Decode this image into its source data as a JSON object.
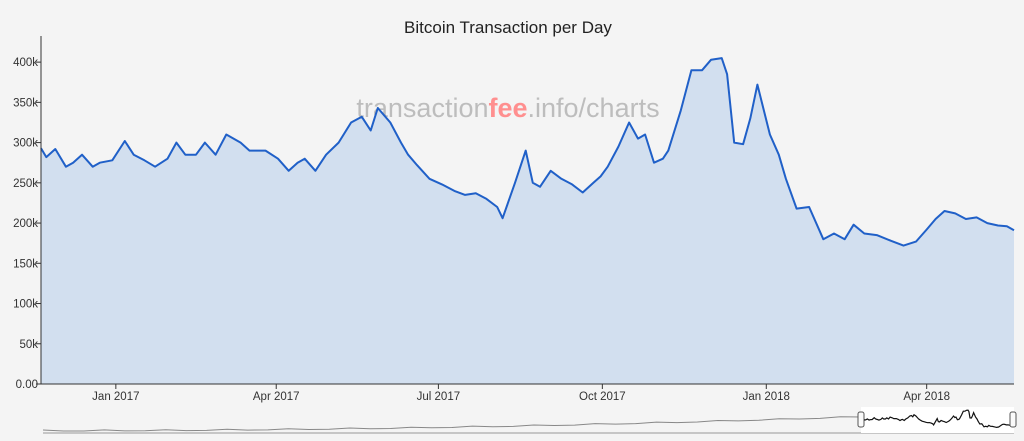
{
  "colors": {
    "background": "#f4f4f4",
    "line": "#2060c8",
    "fill": "#d2dfef",
    "axis": "#333333",
    "watermark": "#bdbdbd",
    "watermark_accent": "#ff8f8f"
  },
  "watermark": {
    "prefix": "transaction",
    "accent": "fee",
    "suffix": ".info/charts"
  },
  "chart_data": {
    "type": "area",
    "title": "Bitcoin Transaction per Day",
    "xlabel": "",
    "ylabel": "",
    "xlim": [
      "2016-11-20",
      "2018-05-20"
    ],
    "ylim": [
      0,
      425000
    ],
    "y_ticks": [
      0,
      50000,
      100000,
      150000,
      200000,
      250000,
      300000,
      350000,
      400000
    ],
    "y_tick_labels": [
      "0.00",
      "50k",
      "100k",
      "150k",
      "200k",
      "250k",
      "300k",
      "350k",
      "400k"
    ],
    "x_ticks": [
      "2017-01-01",
      "2017-04-01",
      "2017-07-01",
      "2017-10-01",
      "2018-01-01",
      "2018-04-01"
    ],
    "x_tick_labels": [
      "Jan 2017",
      "Apr 2017",
      "Jul 2017",
      "Oct 2017",
      "Jan 2018",
      "Apr 2018"
    ],
    "grid": false,
    "legend": "none",
    "series": [
      {
        "x": [
          "2016-11-20",
          "2016-11-23",
          "2016-11-28",
          "2016-12-04",
          "2016-12-08",
          "2016-12-13",
          "2016-12-19",
          "2016-12-23",
          "2016-12-30",
          "2017-01-06",
          "2017-01-11",
          "2017-01-17",
          "2017-01-23",
          "2017-01-30",
          "2017-02-04",
          "2017-02-09",
          "2017-02-15",
          "2017-02-20",
          "2017-02-26",
          "2017-03-04",
          "2017-03-12",
          "2017-03-17",
          "2017-03-26",
          "2017-04-02",
          "2017-04-08",
          "2017-04-13",
          "2017-04-17",
          "2017-04-23",
          "2017-04-29",
          "2017-05-06",
          "2017-05-13",
          "2017-05-19",
          "2017-05-24",
          "2017-05-28",
          "2017-06-04",
          "2017-06-10",
          "2017-06-14",
          "2017-06-19",
          "2017-06-26",
          "2017-07-03",
          "2017-07-10",
          "2017-07-16",
          "2017-07-22",
          "2017-07-28",
          "2017-08-03",
          "2017-08-06",
          "2017-08-13",
          "2017-08-19",
          "2017-08-23",
          "2017-08-27",
          "2017-09-02",
          "2017-09-08",
          "2017-09-14",
          "2017-09-20",
          "2017-09-26",
          "2017-09-30",
          "2017-10-04",
          "2017-10-10",
          "2017-10-16",
          "2017-10-21",
          "2017-10-25",
          "2017-10-30",
          "2017-11-04",
          "2017-11-07",
          "2017-11-14",
          "2017-11-20",
          "2017-11-26",
          "2017-12-01",
          "2017-12-07",
          "2017-12-10",
          "2017-12-14",
          "2017-12-19",
          "2017-12-23",
          "2017-12-27",
          "2018-01-03",
          "2018-01-08",
          "2018-01-12",
          "2018-01-18",
          "2018-01-25",
          "2018-02-02",
          "2018-02-08",
          "2018-02-14",
          "2018-02-19",
          "2018-02-25",
          "2018-03-04",
          "2018-03-12",
          "2018-03-19",
          "2018-03-26",
          "2018-04-01",
          "2018-04-06",
          "2018-04-11",
          "2018-04-17",
          "2018-04-23",
          "2018-04-29",
          "2018-05-05",
          "2018-05-11",
          "2018-05-16",
          "2018-05-20"
        ],
        "values": [
          293000,
          282000,
          292000,
          270000,
          275000,
          285000,
          270000,
          275000,
          278000,
          302000,
          285000,
          278000,
          270000,
          280000,
          300000,
          285000,
          285000,
          300000,
          285000,
          310000,
          300000,
          290000,
          290000,
          280000,
          265000,
          275000,
          280000,
          265000,
          285000,
          300000,
          325000,
          332000,
          315000,
          343000,
          325000,
          300000,
          285000,
          272000,
          255000,
          248000,
          240000,
          235000,
          237000,
          230000,
          220000,
          206000,
          250000,
          290000,
          250000,
          245000,
          265000,
          255000,
          248000,
          238000,
          250000,
          258000,
          270000,
          295000,
          325000,
          305000,
          310000,
          275000,
          280000,
          290000,
          340000,
          390000,
          390000,
          403000,
          405000,
          385000,
          300000,
          298000,
          330000,
          372000,
          310000,
          285000,
          255000,
          218000,
          220000,
          180000,
          187000,
          180000,
          198000,
          187000,
          185000,
          178000,
          172000,
          177000,
          192000,
          205000,
          215000,
          212000,
          205000,
          207000,
          200000,
          197000,
          196000,
          191000
        ]
      }
    ]
  }
}
